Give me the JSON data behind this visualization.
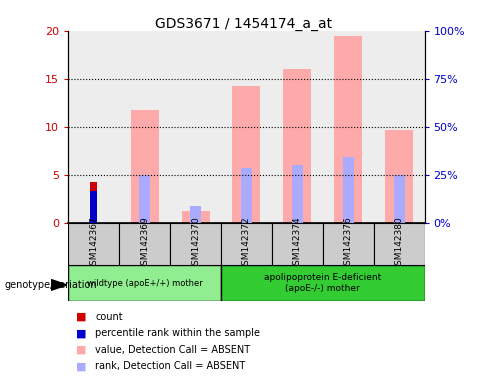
{
  "title": "GDS3671 / 1454174_a_at",
  "samples": [
    "GSM142367",
    "GSM142369",
    "GSM142370",
    "GSM142372",
    "GSM142374",
    "GSM142376",
    "GSM142380"
  ],
  "pink_bars": [
    0.0,
    11.7,
    1.2,
    14.2,
    16.0,
    19.5,
    9.7
  ],
  "blue_bars": [
    0.0,
    5.0,
    1.7,
    5.7,
    6.0,
    6.8,
    5.0
  ],
  "red_bar": [
    4.2,
    0,
    0,
    0,
    0,
    0,
    0
  ],
  "dark_blue_bar": [
    3.3,
    0,
    0,
    0,
    0,
    0,
    0
  ],
  "ylim_left": [
    0,
    20
  ],
  "ylim_right": [
    0,
    100
  ],
  "yticks_left": [
    0,
    5,
    10,
    15,
    20
  ],
  "yticks_right": [
    0,
    25,
    50,
    75,
    100
  ],
  "ytick_labels_left": [
    "0",
    "5",
    "10",
    "15",
    "20"
  ],
  "ytick_labels_right": [
    "0%",
    "25%",
    "50%",
    "75%",
    "100%"
  ],
  "group1_label": "wildtype (apoE+/+) mother",
  "group2_label": "apolipoprotein E-deficient\n(apoE-/-) mother",
  "group1_color": "#90ee90",
  "group2_color": "#33cc33",
  "genotype_label": "genotype/variation",
  "legend_items": [
    {
      "label": "count",
      "color": "#cc0000"
    },
    {
      "label": "percentile rank within the sample",
      "color": "#0000cc"
    },
    {
      "label": "value, Detection Call = ABSENT",
      "color": "#ffaaaa"
    },
    {
      "label": "rank, Detection Call = ABSENT",
      "color": "#aaaaff"
    }
  ],
  "pink_color": "#ffaaaa",
  "blue_color": "#aaaaff",
  "red_color": "#cc0000",
  "dark_blue_color": "#0000cc",
  "tick_color_left": "#cc0000",
  "tick_color_right": "#0000cc",
  "gray_col_color": "#cccccc",
  "plot_bg": "#ffffff"
}
